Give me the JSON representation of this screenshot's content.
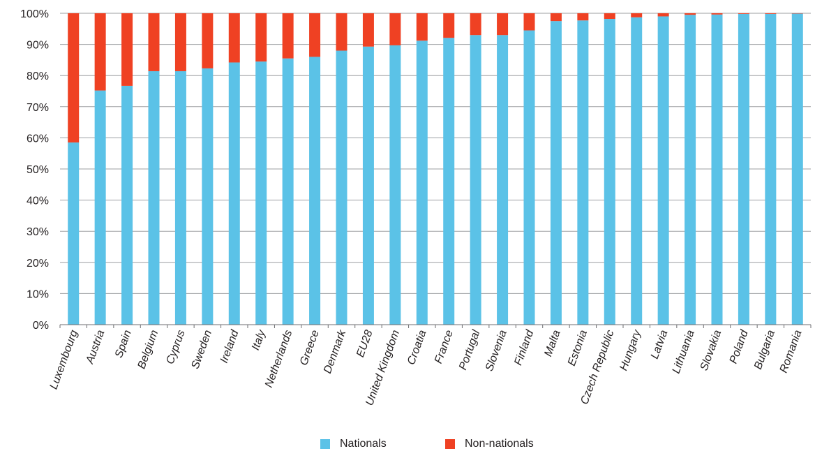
{
  "chart_data": {
    "type": "bar",
    "stacked": true,
    "categories": [
      "Luxembourg",
      "Austria",
      "Spain",
      "Belgium",
      "Cyprus",
      "Sweden",
      "Ireland",
      "Italy",
      "Netherlands",
      "Greece",
      "Denmark",
      "EU28",
      "United Kingdom",
      "Croatia",
      "France",
      "Portugal",
      "Slovenia",
      "Finland",
      "Malta",
      "Estonia",
      "Czech Republic",
      "Hungary",
      "Latvia",
      "Lithuania",
      "Slovakia",
      "Poland",
      "Bulgaria",
      "Romania"
    ],
    "series": [
      {
        "name": "Nationals",
        "color": "#5bc2e7",
        "values": [
          58.5,
          75.2,
          76.7,
          81.4,
          81.4,
          82.3,
          84.2,
          84.5,
          85.5,
          86.0,
          88.0,
          89.3,
          89.7,
          91.2,
          92.1,
          93.0,
          93.0,
          94.5,
          97.5,
          97.7,
          98.2,
          98.7,
          99.0,
          99.5,
          99.6,
          99.8,
          99.8,
          99.9
        ]
      },
      {
        "name": "Non-nationals",
        "color": "#ef4123",
        "values": [
          41.5,
          24.8,
          23.3,
          18.6,
          18.6,
          17.7,
          15.8,
          15.5,
          14.5,
          14.0,
          12.0,
          10.7,
          10.3,
          8.8,
          7.9,
          7.0,
          7.0,
          5.5,
          2.5,
          2.3,
          1.8,
          1.3,
          1.0,
          0.5,
          0.4,
          0.2,
          0.2,
          0.1
        ]
      }
    ],
    "yticks": [
      "0%",
      "10%",
      "20%",
      "30%",
      "40%",
      "50%",
      "60%",
      "70%",
      "80%",
      "90%",
      "100%"
    ],
    "ylim": [
      0,
      100
    ],
    "grid": true,
    "legend_position": "bottom-center",
    "title": "",
    "xlabel": "",
    "ylabel": ""
  },
  "legend": {
    "items": [
      {
        "label": "Nationals",
        "color": "#5bc2e7"
      },
      {
        "label": "Non-nationals",
        "color": "#ef4123"
      }
    ]
  }
}
